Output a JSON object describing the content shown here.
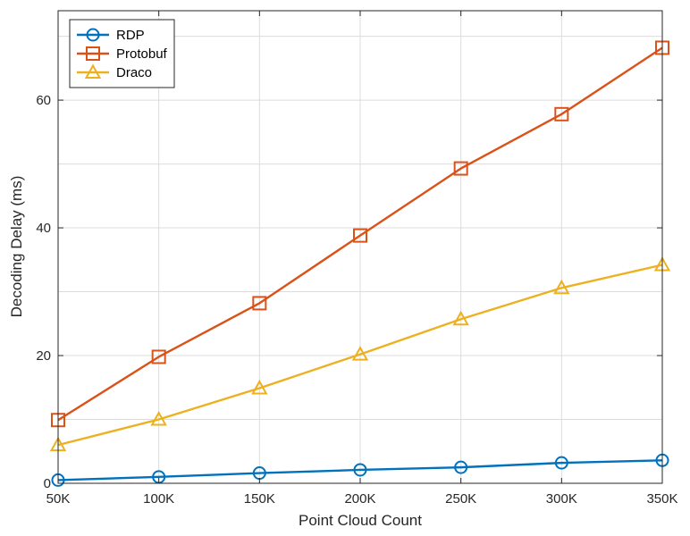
{
  "chart_data": {
    "type": "line",
    "title": "",
    "xlabel": "Point Cloud Count",
    "ylabel": "Decoding Delay (ms)",
    "categories": [
      "50K",
      "100K",
      "150K",
      "200K",
      "250K",
      "300K",
      "350K"
    ],
    "ylim": [
      0,
      74
    ],
    "yticks": [
      0,
      20,
      40,
      60
    ],
    "grid": true,
    "legend_position": "top-left",
    "series": [
      {
        "name": "RDP",
        "marker": "circle",
        "color": "#0072BD",
        "values": [
          0.5,
          1.0,
          1.6,
          2.1,
          2.5,
          3.2,
          3.6
        ]
      },
      {
        "name": "Protobuf",
        "marker": "square",
        "color": "#D95319",
        "values": [
          9.9,
          19.8,
          28.2,
          38.8,
          49.3,
          57.8,
          68.2
        ]
      },
      {
        "name": "Draco",
        "marker": "triangle",
        "color": "#EDB120",
        "values": [
          6.0,
          10.0,
          14.9,
          20.2,
          25.7,
          30.6,
          34.2
        ]
      }
    ]
  }
}
